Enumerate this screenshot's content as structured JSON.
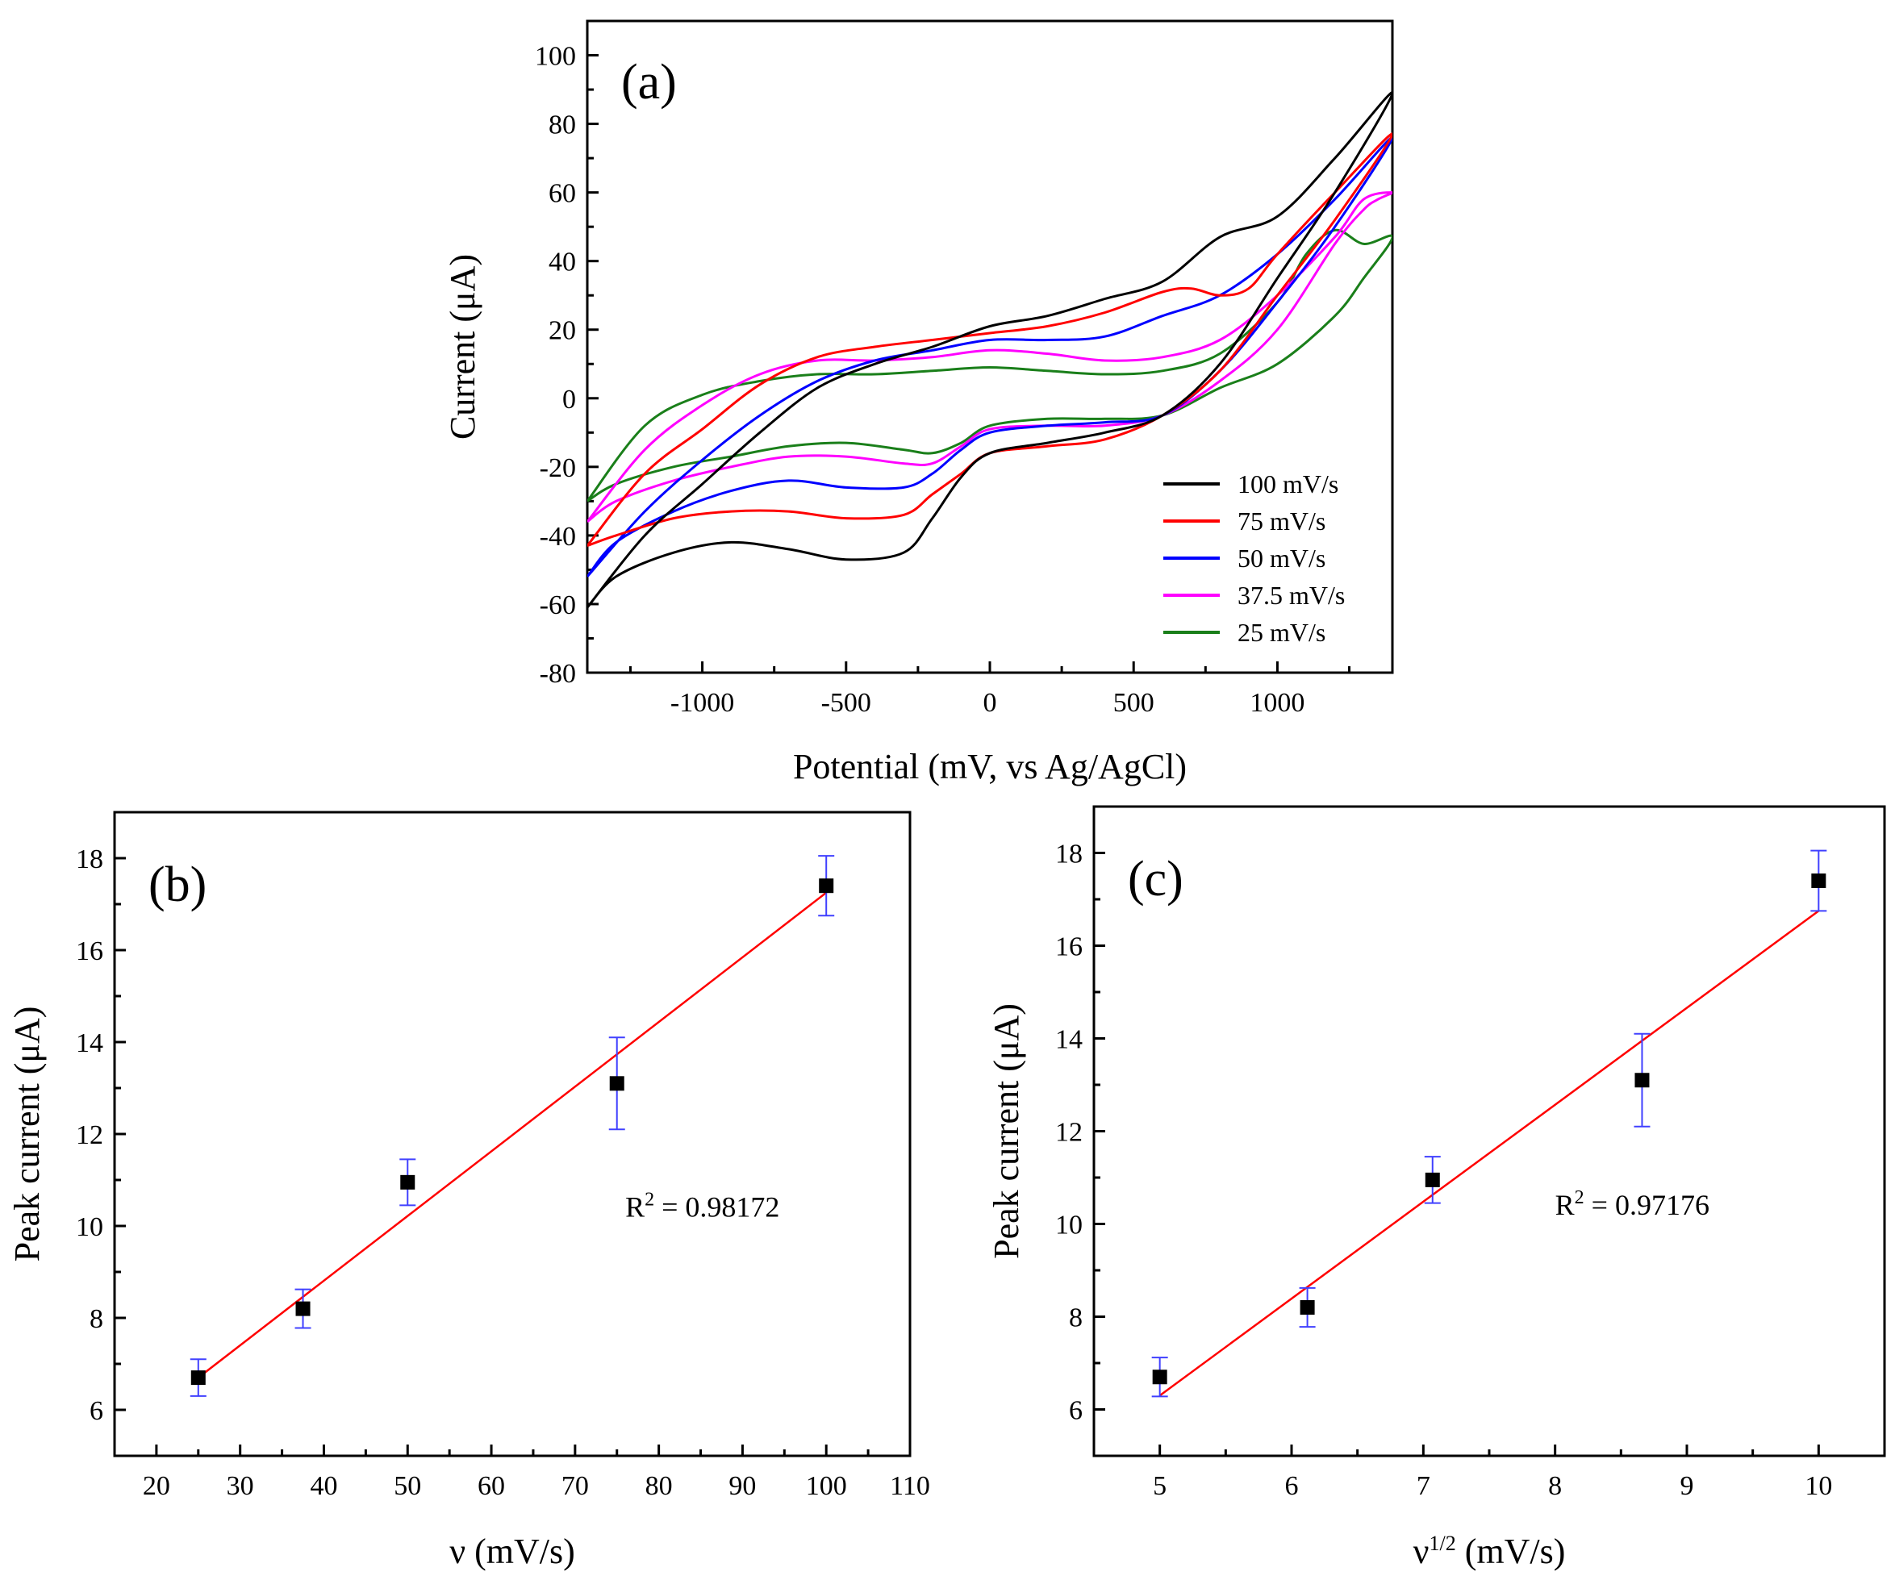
{
  "chart_data": [
    {
      "panel": "(a)",
      "type": "line",
      "xlabel": "Potential (mV, vs Ag/AgCl)",
      "ylabel": "Current (μA)",
      "xlim": [
        -1400,
        1400
      ],
      "ylim": [
        -80,
        110
      ],
      "xticks": [
        -1000,
        -500,
        0,
        500,
        1000
      ],
      "yticks": [
        -80,
        -60,
        -40,
        -20,
        0,
        20,
        40,
        60,
        80,
        100
      ],
      "legend_position": "bottom-right",
      "series": [
        {
          "name": "100 mV/s",
          "color": "#000000",
          "upper": [
            [
              -1400,
              -61
            ],
            [
              -1200,
              -40
            ],
            [
              -1000,
              -25
            ],
            [
              -800,
              -10
            ],
            [
              -600,
              3
            ],
            [
              -400,
              10
            ],
            [
              -200,
              15
            ],
            [
              0,
              21
            ],
            [
              200,
              24
            ],
            [
              400,
              29
            ],
            [
              600,
              34
            ],
            [
              800,
              47
            ],
            [
              1000,
              53
            ],
            [
              1200,
              70
            ],
            [
              1400,
              89
            ]
          ],
          "lower": [
            [
              1400,
              89
            ],
            [
              1200,
              60
            ],
            [
              1000,
              35
            ],
            [
              800,
              10
            ],
            [
              600,
              -5
            ],
            [
              400,
              -10
            ],
            [
              200,
              -13
            ],
            [
              0,
              -16
            ],
            [
              -100,
              -23
            ],
            [
              -200,
              -35
            ],
            [
              -300,
              -45
            ],
            [
              -500,
              -47
            ],
            [
              -700,
              -44
            ],
            [
              -900,
              -42
            ],
            [
              -1100,
              -45
            ],
            [
              -1300,
              -52
            ],
            [
              -1400,
              -61
            ]
          ]
        },
        {
          "name": "75 mV/s",
          "color": "#ff0000",
          "upper": [
            [
              -1400,
              -43
            ],
            [
              -1200,
              -22
            ],
            [
              -1000,
              -9
            ],
            [
              -800,
              4
            ],
            [
              -600,
              12
            ],
            [
              -400,
              15
            ],
            [
              -200,
              17
            ],
            [
              0,
              19
            ],
            [
              200,
              21
            ],
            [
              400,
              25
            ],
            [
              600,
              31
            ],
            [
              700,
              32
            ],
            [
              800,
              30
            ],
            [
              900,
              32
            ],
            [
              1000,
              42
            ],
            [
              1200,
              60
            ],
            [
              1400,
              77
            ]
          ],
          "lower": [
            [
              1400,
              77
            ],
            [
              1200,
              52
            ],
            [
              1000,
              30
            ],
            [
              800,
              8
            ],
            [
              600,
              -5
            ],
            [
              400,
              -12
            ],
            [
              200,
              -14
            ],
            [
              0,
              -16
            ],
            [
              -100,
              -22
            ],
            [
              -200,
              -28
            ],
            [
              -300,
              -34
            ],
            [
              -500,
              -35
            ],
            [
              -700,
              -33
            ],
            [
              -900,
              -33
            ],
            [
              -1100,
              -35
            ],
            [
              -1300,
              -40
            ],
            [
              -1400,
              -43
            ]
          ]
        },
        {
          "name": "50 mV/s",
          "color": "#0000ff",
          "upper": [
            [
              -1400,
              -52
            ],
            [
              -1200,
              -33
            ],
            [
              -1000,
              -18
            ],
            [
              -800,
              -5
            ],
            [
              -600,
              5
            ],
            [
              -400,
              11
            ],
            [
              -200,
              14
            ],
            [
              0,
              17
            ],
            [
              200,
              17
            ],
            [
              400,
              18
            ],
            [
              600,
              24
            ],
            [
              800,
              30
            ],
            [
              1000,
              42
            ],
            [
              1200,
              58
            ],
            [
              1400,
              76
            ]
          ],
          "lower": [
            [
              1400,
              76
            ],
            [
              1200,
              50
            ],
            [
              1000,
              28
            ],
            [
              800,
              8
            ],
            [
              600,
              -5
            ],
            [
              400,
              -7
            ],
            [
              200,
              -8
            ],
            [
              0,
              -10
            ],
            [
              -100,
              -15
            ],
            [
              -200,
              -22
            ],
            [
              -300,
              -26
            ],
            [
              -500,
              -26
            ],
            [
              -700,
              -24
            ],
            [
              -900,
              -27
            ],
            [
              -1100,
              -33
            ],
            [
              -1300,
              -42
            ],
            [
              -1400,
              -52
            ]
          ]
        },
        {
          "name": "37.5 mV/s",
          "color": "#ff00ff",
          "upper": [
            [
              -1400,
              -36
            ],
            [
              -1200,
              -15
            ],
            [
              -1000,
              -2
            ],
            [
              -800,
              7
            ],
            [
              -600,
              11
            ],
            [
              -400,
              11
            ],
            [
              -200,
              12
            ],
            [
              0,
              14
            ],
            [
              200,
              13
            ],
            [
              400,
              11
            ],
            [
              600,
              12
            ],
            [
              800,
              17
            ],
            [
              1000,
              30
            ],
            [
              1200,
              47
            ],
            [
              1300,
              58
            ],
            [
              1400,
              60
            ]
          ],
          "lower": [
            [
              1400,
              60
            ],
            [
              1350,
              58
            ],
            [
              1300,
              55
            ],
            [
              1200,
              45
            ],
            [
              1000,
              20
            ],
            [
              800,
              5
            ],
            [
              600,
              -5
            ],
            [
              400,
              -8
            ],
            [
              200,
              -8
            ],
            [
              0,
              -9
            ],
            [
              -100,
              -14
            ],
            [
              -200,
              -19
            ],
            [
              -300,
              -19
            ],
            [
              -500,
              -17
            ],
            [
              -700,
              -17
            ],
            [
              -900,
              -20
            ],
            [
              -1100,
              -24
            ],
            [
              -1300,
              -30
            ],
            [
              -1400,
              -36
            ]
          ]
        },
        {
          "name": "25 mV/s",
          "color": "#1a7f1a",
          "upper": [
            [
              -1400,
              -30
            ],
            [
              -1200,
              -8
            ],
            [
              -1000,
              1
            ],
            [
              -800,
              5
            ],
            [
              -600,
              7
            ],
            [
              -400,
              7
            ],
            [
              -200,
              8
            ],
            [
              0,
              9
            ],
            [
              200,
              8
            ],
            [
              400,
              7
            ],
            [
              600,
              8
            ],
            [
              800,
              13
            ],
            [
              1000,
              28
            ],
            [
              1100,
              42
            ],
            [
              1200,
              49
            ],
            [
              1300,
              45
            ],
            [
              1400,
              47
            ]
          ],
          "lower": [
            [
              1400,
              47
            ],
            [
              1300,
              35
            ],
            [
              1200,
              24
            ],
            [
              1000,
              10
            ],
            [
              800,
              3
            ],
            [
              600,
              -5
            ],
            [
              400,
              -6
            ],
            [
              200,
              -6
            ],
            [
              0,
              -8
            ],
            [
              -100,
              -13
            ],
            [
              -200,
              -16
            ],
            [
              -300,
              -15
            ],
            [
              -500,
              -13
            ],
            [
              -700,
              -14
            ],
            [
              -900,
              -17
            ],
            [
              -1100,
              -20
            ],
            [
              -1300,
              -25
            ],
            [
              -1400,
              -30
            ]
          ]
        }
      ]
    },
    {
      "panel": "(b)",
      "type": "scatter",
      "xlabel": "ν (mV/s)",
      "ylabel": "Peak current (μA)",
      "xlim": [
        15,
        110
      ],
      "ylim": [
        5,
        19
      ],
      "xticks": [
        20,
        30,
        40,
        50,
        60,
        70,
        80,
        90,
        100,
        110
      ],
      "yticks": [
        6,
        8,
        10,
        12,
        14,
        16,
        18
      ],
      "x": [
        25,
        37.5,
        50,
        75,
        100
      ],
      "y": [
        6.7,
        8.2,
        10.95,
        13.1,
        17.4
      ],
      "yerr": [
        0.4,
        0.42,
        0.5,
        1.0,
        0.65
      ],
      "fit": {
        "x": [
          25,
          100
        ],
        "y": [
          6.7,
          17.25
        ]
      },
      "annotation": {
        "main": "R",
        "sup": "2",
        "rest": " = 0.98172",
        "x": 76,
        "y": 10.2
      }
    },
    {
      "panel": "(c)",
      "type": "scatter",
      "xlabel_main": "ν",
      "xlabel_sup": "1/2",
      "xlabel_rest": " (mV/s)",
      "ylabel": "Peak current (μA)",
      "xlim": [
        4.5,
        10.5
      ],
      "ylim": [
        5,
        19
      ],
      "xticks": [
        5,
        6,
        7,
        8,
        9,
        10
      ],
      "yticks": [
        6,
        8,
        10,
        12,
        14,
        16,
        18
      ],
      "x": [
        5,
        6.12,
        7.07,
        8.66,
        10
      ],
      "y": [
        6.7,
        8.2,
        10.95,
        13.1,
        17.4
      ],
      "yerr": [
        0.42,
        0.42,
        0.5,
        1.0,
        0.65
      ],
      "fit": {
        "x": [
          5,
          10
        ],
        "y": [
          6.3,
          16.75
        ]
      },
      "annotation": {
        "main": "R",
        "sup": "2",
        "rest": " = 0.97176",
        "x": 8.0,
        "y": 10.2
      }
    }
  ]
}
